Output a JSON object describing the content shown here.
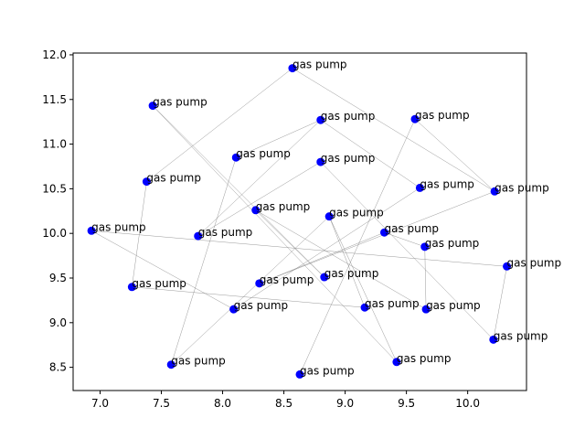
{
  "chart_data": {
    "type": "scatter",
    "title": "",
    "xlabel": "",
    "ylabel": "",
    "xlim": [
      6.78,
      10.48
    ],
    "ylim": [
      8.24,
      12.02
    ],
    "xticks": [
      "7.0",
      "7.5",
      "8.0",
      "8.5",
      "9.0",
      "9.5",
      "10.0"
    ],
    "yticks": [
      "8.5",
      "9.0",
      "9.5",
      "10.0",
      "10.5",
      "11.0",
      "11.5",
      "12.0"
    ],
    "grid": false,
    "marker_color": "#0000ff",
    "edge_color": "#808080",
    "points": [
      {
        "x": 8.57,
        "y": 11.85,
        "label": "gas pump"
      },
      {
        "x": 7.43,
        "y": 11.43,
        "label": "gas pump"
      },
      {
        "x": 8.8,
        "y": 11.27,
        "label": "gas pump"
      },
      {
        "x": 9.57,
        "y": 11.28,
        "label": "gas pump"
      },
      {
        "x": 8.11,
        "y": 10.85,
        "label": "gas pump"
      },
      {
        "x": 8.8,
        "y": 10.8,
        "label": "gas pump"
      },
      {
        "x": 7.38,
        "y": 10.58,
        "label": "gas pump"
      },
      {
        "x": 9.61,
        "y": 10.51,
        "label": "gas pump"
      },
      {
        "x": 10.22,
        "y": 10.47,
        "label": "gas pump"
      },
      {
        "x": 8.27,
        "y": 10.26,
        "label": "gas pump"
      },
      {
        "x": 8.87,
        "y": 10.19,
        "label": "gas pump"
      },
      {
        "x": 6.93,
        "y": 10.03,
        "label": "gas pump"
      },
      {
        "x": 9.32,
        "y": 10.01,
        "label": "gas pump"
      },
      {
        "x": 7.8,
        "y": 9.97,
        "label": "gas pump"
      },
      {
        "x": 9.65,
        "y": 9.85,
        "label": "gas pump"
      },
      {
        "x": 10.32,
        "y": 9.63,
        "label": "gas pump"
      },
      {
        "x": 8.83,
        "y": 9.51,
        "label": "gas pump"
      },
      {
        "x": 8.3,
        "y": 9.44,
        "label": "gas pump"
      },
      {
        "x": 7.26,
        "y": 9.4,
        "label": "gas pump"
      },
      {
        "x": 9.16,
        "y": 9.17,
        "label": "gas pump"
      },
      {
        "x": 9.66,
        "y": 9.15,
        "label": "gas pump"
      },
      {
        "x": 8.09,
        "y": 9.15,
        "label": "gas pump"
      },
      {
        "x": 10.21,
        "y": 8.81,
        "label": "gas pump"
      },
      {
        "x": 9.42,
        "y": 8.56,
        "label": "gas pump"
      },
      {
        "x": 7.58,
        "y": 8.53,
        "label": "gas pump"
      },
      {
        "x": 8.63,
        "y": 8.42,
        "label": "gas pump"
      }
    ],
    "edges": [
      [
        0,
        6
      ],
      [
        0,
        8
      ],
      [
        1,
        16
      ],
      [
        1,
        23
      ],
      [
        2,
        13
      ],
      [
        2,
        7
      ],
      [
        3,
        8
      ],
      [
        3,
        25
      ],
      [
        4,
        2
      ],
      [
        4,
        24
      ],
      [
        5,
        13
      ],
      [
        5,
        22
      ],
      [
        6,
        18
      ],
      [
        7,
        21
      ],
      [
        8,
        17
      ],
      [
        9,
        16
      ],
      [
        9,
        20
      ],
      [
        10,
        19
      ],
      [
        10,
        24
      ],
      [
        10,
        23
      ],
      [
        11,
        21
      ],
      [
        11,
        15
      ],
      [
        12,
        14
      ],
      [
        12,
        17
      ],
      [
        14,
        20
      ],
      [
        15,
        22
      ],
      [
        18,
        19
      ]
    ]
  }
}
